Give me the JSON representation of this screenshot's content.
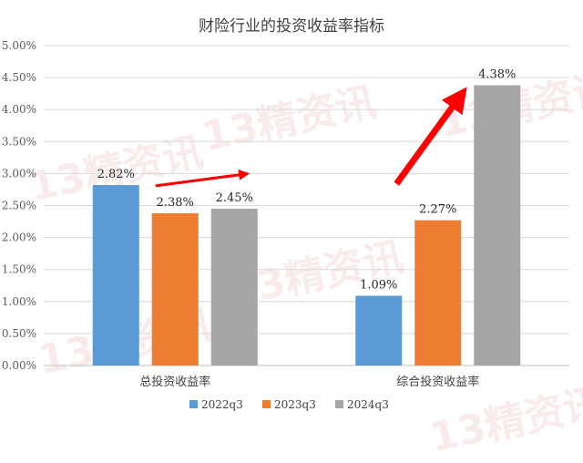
{
  "chart_data": {
    "type": "bar",
    "title": "财险行业的投资收益率指标",
    "categories": [
      "总投资收益率",
      "综合投资收益率"
    ],
    "series": [
      {
        "name": "2022q3",
        "values": [
          2.82,
          1.09
        ],
        "labels": [
          "2.82%",
          "1.09%"
        ],
        "color": "#5b9bd5"
      },
      {
        "name": "2023q3",
        "values": [
          2.38,
          2.27
        ],
        "labels": [
          "2.38%",
          "2.27%"
        ],
        "color": "#ed7d31"
      },
      {
        "name": "2024q3",
        "values": [
          2.45,
          4.38
        ],
        "labels": [
          "2.45%",
          "4.38%"
        ],
        "color": "#a5a5a5"
      }
    ],
    "ylim": [
      0,
      5
    ],
    "yticks": [
      "0.00%",
      "0.50%",
      "1.00%",
      "1.50%",
      "2.00%",
      "2.50%",
      "3.00%",
      "3.50%",
      "4.00%",
      "4.50%",
      "5.00%"
    ],
    "grid": true,
    "legend": "bottom",
    "arrow_color": "#ff0000"
  },
  "watermark": "13精资讯"
}
